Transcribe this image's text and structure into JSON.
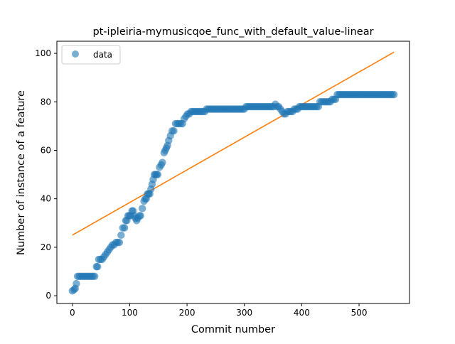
{
  "chart_data": {
    "type": "scatter",
    "title": "pt-ipleiria-mymusicqoe_func_with_default_value-linear",
    "xlabel": "Commit number",
    "ylabel": "Number of instance of a feature",
    "xlim": [
      -27,
      588
    ],
    "ylim": [
      -3.2,
      105
    ],
    "xticks": [
      0,
      100,
      200,
      300,
      400,
      500
    ],
    "yticks": [
      0,
      20,
      40,
      60,
      80,
      100
    ],
    "grid": false,
    "legend": {
      "position": "top-left",
      "entries": [
        "data"
      ]
    },
    "series": [
      {
        "name": "data",
        "kind": "scatter",
        "color": "#1f77b4",
        "points": [
          [
            0,
            2
          ],
          [
            3,
            2.5
          ],
          [
            5,
            3
          ],
          [
            7,
            5
          ],
          [
            9,
            8
          ],
          [
            12,
            8
          ],
          [
            15,
            8
          ],
          [
            18,
            8
          ],
          [
            21,
            8
          ],
          [
            24,
            8
          ],
          [
            27,
            8
          ],
          [
            30,
            8
          ],
          [
            33,
            8
          ],
          [
            36,
            8
          ],
          [
            39,
            8
          ],
          [
            42,
            12
          ],
          [
            44,
            12
          ],
          [
            46,
            15
          ],
          [
            49,
            15
          ],
          [
            52,
            15
          ],
          [
            55,
            16
          ],
          [
            58,
            17
          ],
          [
            61,
            18
          ],
          [
            64,
            19
          ],
          [
            67,
            20
          ],
          [
            70,
            21
          ],
          [
            73,
            21
          ],
          [
            76,
            22
          ],
          [
            79,
            22
          ],
          [
            82,
            22
          ],
          [
            85,
            25
          ],
          [
            88,
            28
          ],
          [
            91,
            28
          ],
          [
            93,
            31
          ],
          [
            95,
            31
          ],
          [
            97,
            33
          ],
          [
            99,
            33
          ],
          [
            101,
            33
          ],
          [
            104,
            35
          ],
          [
            106,
            35
          ],
          [
            108,
            33
          ],
          [
            110,
            32
          ],
          [
            112,
            31
          ],
          [
            114,
            32
          ],
          [
            117,
            33
          ],
          [
            119,
            33
          ],
          [
            122,
            36
          ],
          [
            125,
            39
          ],
          [
            127,
            40
          ],
          [
            129,
            40
          ],
          [
            131,
            42
          ],
          [
            133,
            42
          ],
          [
            135,
            42
          ],
          [
            137,
            44
          ],
          [
            139,
            46
          ],
          [
            141,
            48
          ],
          [
            143,
            50
          ],
          [
            145,
            50
          ],
          [
            147,
            50
          ],
          [
            149,
            50
          ],
          [
            152,
            53
          ],
          [
            155,
            54
          ],
          [
            157,
            55
          ],
          [
            160,
            59
          ],
          [
            162,
            60
          ],
          [
            164,
            61
          ],
          [
            166,
            62
          ],
          [
            168,
            64
          ],
          [
            171,
            66
          ],
          [
            174,
            68
          ],
          [
            177,
            68
          ],
          [
            180,
            71
          ],
          [
            183,
            71
          ],
          [
            186,
            71
          ],
          [
            189,
            71
          ],
          [
            192,
            71
          ],
          [
            195,
            73
          ],
          [
            198,
            74
          ],
          [
            201,
            75
          ],
          [
            204,
            75
          ],
          [
            207,
            76
          ],
          [
            210,
            76
          ],
          [
            213,
            76
          ],
          [
            216,
            76
          ],
          [
            219,
            76
          ],
          [
            222,
            76
          ],
          [
            225,
            76
          ],
          [
            228,
            76
          ],
          [
            231,
            76
          ],
          [
            234,
            77
          ],
          [
            237,
            77
          ],
          [
            240,
            77
          ],
          [
            243,
            77
          ],
          [
            246,
            77
          ],
          [
            249,
            77
          ],
          [
            252,
            77
          ],
          [
            255,
            77
          ],
          [
            258,
            77
          ],
          [
            261,
            77
          ],
          [
            264,
            77
          ],
          [
            267,
            77
          ],
          [
            270,
            77
          ],
          [
            273,
            77
          ],
          [
            276,
            77
          ],
          [
            279,
            77
          ],
          [
            282,
            77
          ],
          [
            285,
            77
          ],
          [
            288,
            77
          ],
          [
            291,
            77
          ],
          [
            294,
            77
          ],
          [
            297,
            77
          ],
          [
            300,
            77
          ],
          [
            303,
            78
          ],
          [
            306,
            78
          ],
          [
            309,
            78
          ],
          [
            312,
            78
          ],
          [
            315,
            78
          ],
          [
            318,
            78
          ],
          [
            321,
            78
          ],
          [
            324,
            78
          ],
          [
            327,
            78
          ],
          [
            330,
            78
          ],
          [
            333,
            78
          ],
          [
            336,
            78
          ],
          [
            339,
            78
          ],
          [
            342,
            78
          ],
          [
            345,
            78
          ],
          [
            348,
            78
          ],
          [
            351,
            78
          ],
          [
            354,
            79
          ],
          [
            357,
            78
          ],
          [
            360,
            78
          ],
          [
            363,
            77
          ],
          [
            366,
            76
          ],
          [
            369,
            75
          ],
          [
            372,
            75
          ],
          [
            375,
            76
          ],
          [
            378,
            76
          ],
          [
            381,
            76
          ],
          [
            384,
            76
          ],
          [
            387,
            77
          ],
          [
            390,
            77
          ],
          [
            393,
            77
          ],
          [
            396,
            78
          ],
          [
            399,
            78
          ],
          [
            402,
            78
          ],
          [
            405,
            78
          ],
          [
            408,
            78
          ],
          [
            411,
            78
          ],
          [
            414,
            78
          ],
          [
            417,
            78
          ],
          [
            420,
            78
          ],
          [
            423,
            78
          ],
          [
            426,
            78
          ],
          [
            429,
            78
          ],
          [
            432,
            80
          ],
          [
            435,
            80
          ],
          [
            438,
            80
          ],
          [
            441,
            80
          ],
          [
            444,
            80
          ],
          [
            447,
            80
          ],
          [
            450,
            80
          ],
          [
            453,
            81
          ],
          [
            456,
            81
          ],
          [
            459,
            81
          ],
          [
            462,
            83
          ],
          [
            465,
            83
          ],
          [
            468,
            83
          ],
          [
            471,
            83
          ],
          [
            474,
            83
          ],
          [
            477,
            83
          ],
          [
            480,
            83
          ],
          [
            483,
            83
          ],
          [
            486,
            83
          ],
          [
            489,
            83
          ],
          [
            492,
            83
          ],
          [
            495,
            83
          ],
          [
            498,
            83
          ],
          [
            501,
            83
          ],
          [
            504,
            83
          ],
          [
            507,
            83
          ],
          [
            510,
            83
          ],
          [
            513,
            83
          ],
          [
            516,
            83
          ],
          [
            519,
            83
          ],
          [
            522,
            83
          ],
          [
            525,
            83
          ],
          [
            528,
            83
          ],
          [
            531,
            83
          ],
          [
            534,
            83
          ],
          [
            537,
            83
          ],
          [
            540,
            83
          ],
          [
            543,
            83
          ],
          [
            546,
            83
          ],
          [
            549,
            83
          ],
          [
            552,
            83
          ],
          [
            555,
            83
          ],
          [
            558,
            83
          ],
          [
            561,
            83
          ]
        ]
      },
      {
        "name": "",
        "kind": "line",
        "color": "#ff7f0e",
        "x": [
          0,
          561
        ],
        "y": [
          25,
          100.5
        ]
      }
    ]
  }
}
